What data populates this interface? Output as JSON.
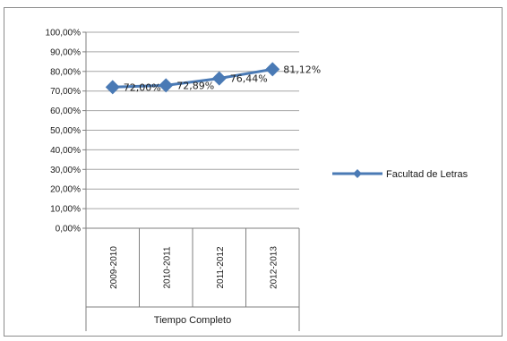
{
  "chart_data": {
    "type": "line",
    "x": [
      "2009-2010",
      "2010-2011",
      "2011-2012",
      "2012-2013"
    ],
    "group_label": "Tiempo Completo",
    "series": [
      {
        "name": "Facultad de Letras",
        "values": [
          72.0,
          72.89,
          76.44,
          81.12
        ],
        "labels": [
          "72,00%",
          "72,89%",
          "76,44%",
          "81,12%"
        ],
        "color": "#4a7ab5"
      }
    ],
    "ylim": [
      0,
      100
    ],
    "yticks": [
      "0,00%",
      "10,00%",
      "20,00%",
      "30,00%",
      "40,00%",
      "50,00%",
      "60,00%",
      "70,00%",
      "80,00%",
      "90,00%",
      "100,00%"
    ],
    "grid": true,
    "legend_position": "right"
  }
}
